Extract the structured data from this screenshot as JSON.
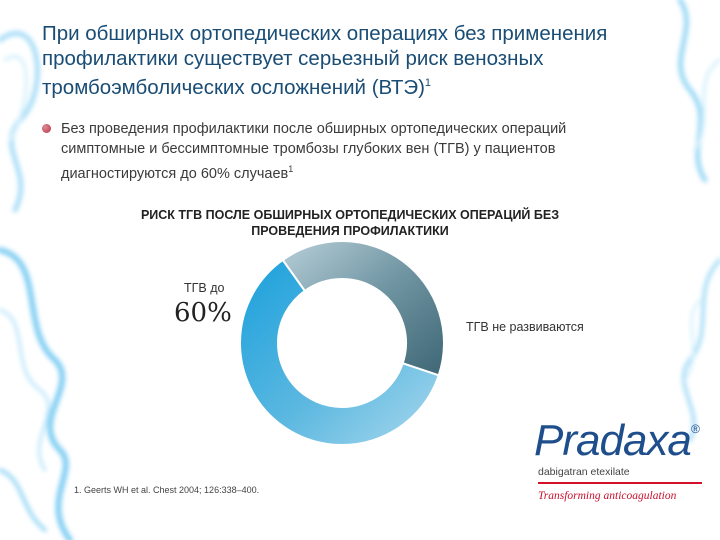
{
  "title": {
    "text": "При обширных ортопедических операциях без применения профилактики существует серьезный риск венозных тромбоэмболических осложнений (ВТЭ)",
    "sup": "1"
  },
  "bullet": {
    "text": "Без проведения профилактики после обширных ортопедических операций симптомные и бессимптомные тромбозы глубоких вен (ТГВ) у пациентов диагностируются до 60% случаев",
    "sup": "1"
  },
  "chart_data": {
    "type": "pie",
    "variant": "donut",
    "title": "РИСК ТГВ ПОСЛЕ ОБШИРНЫХ ОРТОПЕДИЧЕСКИХ ОПЕРАЦИЙ БЕЗ ПРОВЕДЕНИЯ ПРОФИЛАКТИКИ",
    "slices": [
      {
        "label": "ТГВ до",
        "value": 60,
        "display": "60%",
        "color": "#29a3d6"
      },
      {
        "label": "ТГВ не развиваются",
        "value": 40,
        "display": "",
        "color": "#5d8896"
      }
    ]
  },
  "footnote": "1. Geerts WH et al. Chest 2004; 126:338–400.",
  "logo": {
    "word": "Pradaxa",
    "registered": "®",
    "sub": "dabigatran etexilate",
    "tagline": "Transforming anticoagulation"
  },
  "colors": {
    "title": "#1a4d75",
    "accent_red": "#c8102e",
    "donut_main": "#29a3d6",
    "donut_rest": "#5d8896"
  }
}
